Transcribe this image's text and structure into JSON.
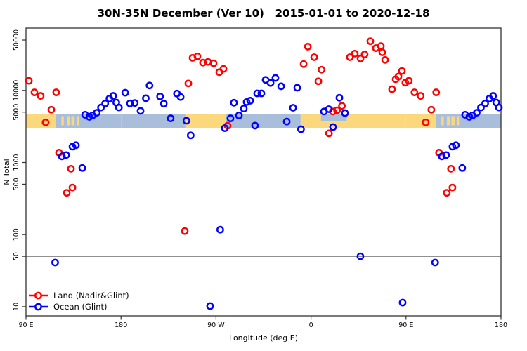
{
  "chart_data": {
    "type": "scatter",
    "title": "30N-35N December (Ver 10)   2015-01-01 to 2020-12-18",
    "xlabel": "Longitude (deg E)",
    "ylabel": "N Total",
    "x_axis": {
      "range_plot_deg": [
        90,
        540
      ],
      "ticks_plot_deg": [
        90,
        180,
        270,
        360,
        450,
        540
      ],
      "tick_labels": [
        "90 E",
        "180",
        "90 W",
        "0",
        "90 E",
        "180"
      ],
      "note": "longitude axis starts at 90E, crosses dateline and Greenwich, ends at 180; data with lon 90E-180E is plotted twice (wrapped)"
    },
    "y_axis": {
      "scale": "log",
      "ticks": [
        10,
        50,
        100,
        500,
        1000,
        5000,
        10000,
        50000
      ],
      "tick_labels": [
        "10",
        "50",
        "100",
        "500",
        "1000",
        "5000",
        "10000",
        "50000"
      ],
      "range": [
        7.5,
        70000
      ]
    },
    "ref_line_n": 50,
    "grid": false,
    "legend_position": "bottom-left-inside",
    "series": [
      {
        "name": "Land (Nadir&Glint)",
        "color": "#ff0000",
        "marker": "open-circle",
        "points": [
          [
            92.7,
            13600
          ],
          [
            98,
            9400
          ],
          [
            103.9,
            8400
          ],
          [
            108.6,
            3600
          ],
          [
            114,
            5400
          ],
          [
            118.6,
            9400
          ],
          [
            121.3,
            1370
          ],
          [
            128.6,
            380
          ],
          [
            132.6,
            820
          ],
          [
            134,
            450
          ],
          [
            240.4,
            112
          ],
          [
            243.8,
            12500
          ],
          [
            247.8,
            28300
          ],
          [
            252.4,
            29700
          ],
          [
            257.7,
            24300
          ],
          [
            262.4,
            24900
          ],
          [
            267.7,
            23800
          ],
          [
            273.1,
            17900
          ],
          [
            277.1,
            19900
          ],
          [
            281,
            3240
          ],
          [
            353,
            23200
          ],
          [
            357,
            40500
          ],
          [
            3,
            28900
          ],
          [
            7,
            13400
          ],
          [
            10,
            19400
          ],
          [
            17,
            2540
          ],
          [
            20.7,
            5100
          ],
          [
            24.7,
            5300
          ],
          [
            29.3,
            6100
          ],
          [
            36.9,
            28900
          ],
          [
            41.5,
            32400
          ],
          [
            46.9,
            27700
          ],
          [
            50.8,
            31600
          ],
          [
            56.2,
            48200
          ],
          [
            61.5,
            38600
          ],
          [
            66.2,
            41200
          ],
          [
            67.5,
            33800
          ],
          [
            70.2,
            26500
          ],
          [
            76.8,
            10400
          ],
          [
            80.2,
            14300
          ],
          [
            82.8,
            15600
          ],
          [
            86.1,
            18600
          ],
          [
            89.4,
            12800
          ]
        ]
      },
      {
        "name": "Ocean (Glint)",
        "color": "#0000ff",
        "marker": "open-circle",
        "points": [
          [
            117.6,
            41
          ],
          [
            124,
            1215
          ],
          [
            128,
            1270
          ],
          [
            134,
            1660
          ],
          [
            137.3,
            1740
          ],
          [
            143.3,
            840
          ],
          [
            146,
            4600
          ],
          [
            150,
            4300
          ],
          [
            153,
            4500
          ],
          [
            157,
            4900
          ],
          [
            161,
            5800
          ],
          [
            165,
            6600
          ],
          [
            169,
            7700
          ],
          [
            172.5,
            8400
          ],
          [
            175.5,
            6800
          ],
          [
            178,
            5800
          ],
          [
            184,
            9300
          ],
          [
            188.5,
            6600
          ],
          [
            193,
            6700
          ],
          [
            198.5,
            5200
          ],
          [
            203.5,
            7800
          ],
          [
            207,
            11700
          ],
          [
            217,
            8250
          ],
          [
            220.5,
            6550
          ],
          [
            227,
            4100
          ],
          [
            233,
            9050
          ],
          [
            236.5,
            8100
          ],
          [
            242,
            3800
          ],
          [
            246,
            2380
          ],
          [
            264.4,
            10.2
          ],
          [
            274,
            117
          ],
          [
            278.4,
            3000
          ],
          [
            283.7,
            4100
          ],
          [
            287,
            6750
          ],
          [
            291.7,
            4500
          ],
          [
            296.3,
            5600
          ],
          [
            299,
            6900
          ],
          [
            302.4,
            7200
          ],
          [
            307,
            3250
          ],
          [
            309,
            9100
          ],
          [
            313,
            9100
          ],
          [
            317,
            14000
          ],
          [
            321.7,
            12700
          ],
          [
            326.3,
            14900
          ],
          [
            331.7,
            11400
          ],
          [
            337,
            3700
          ],
          [
            343,
            5750
          ],
          [
            347,
            10900
          ],
          [
            350.5,
            2900
          ],
          [
            12.3,
            5100
          ],
          [
            16.9,
            5500
          ],
          [
            20.9,
            3100
          ],
          [
            26.9,
            7900
          ],
          [
            32.2,
            4850
          ],
          [
            46.8,
            50
          ],
          [
            86.8,
            11.4
          ]
        ]
      }
    ],
    "strip_map": {
      "description": "land/ocean mask band for the 30N-35N latitude strip drawn across the plot",
      "land_color": "#fcd87c",
      "ocean_color": "#a9bedb",
      "n_range_covered": [
        3000,
        4650
      ],
      "segments": [
        {
          "from": 90,
          "to": 118.5,
          "type": "land"
        },
        {
          "from": 118.5,
          "to": 180,
          "type": "ocean"
        },
        {
          "from": 180,
          "to": 241,
          "type": "ocean"
        },
        {
          "from": 241,
          "to": 279.7,
          "type": "land"
        },
        {
          "from": 279.7,
          "to": 350.2,
          "type": "ocean"
        },
        {
          "from": 350.2,
          "to": 360,
          "type": "land"
        },
        {
          "from": 0,
          "to": 90,
          "type": "land"
        }
      ],
      "islands": [
        {
          "from": 123.5,
          "to": 125.8
        },
        {
          "from": 128.8,
          "to": 131.5
        },
        {
          "from": 133,
          "to": 136
        },
        {
          "from": 138,
          "to": 140.3
        }
      ],
      "mediterranean_notch": {
        "from": 9.5,
        "to": 33.8,
        "half": "top"
      }
    }
  }
}
